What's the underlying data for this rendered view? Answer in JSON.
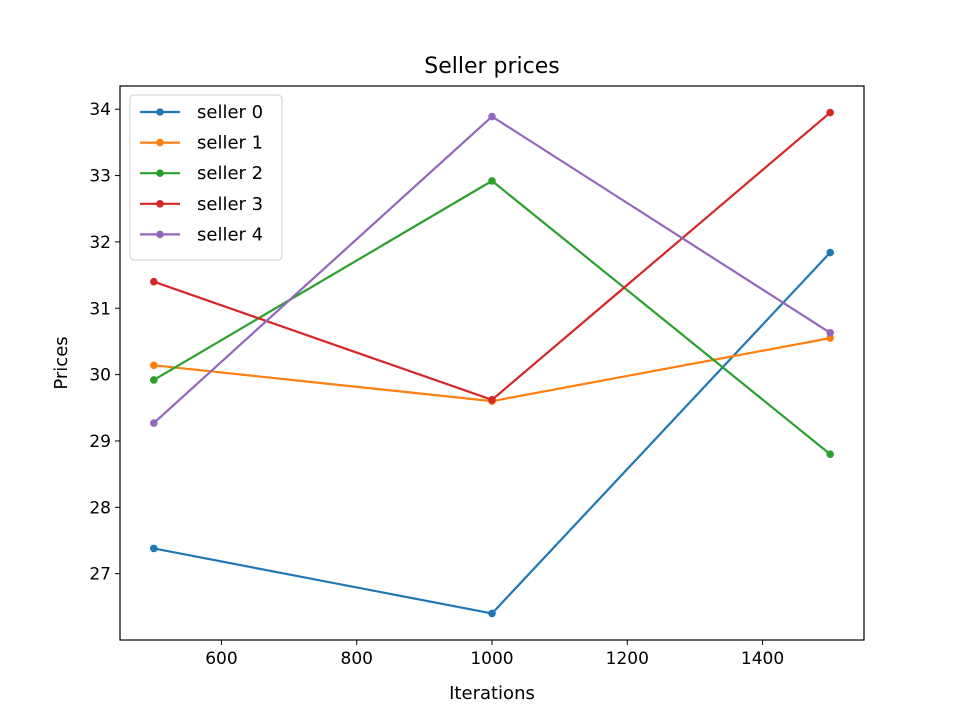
{
  "chart_data": {
    "type": "line",
    "title": "Seller prices",
    "xlabel": "Iterations",
    "ylabel": "Prices",
    "x": [
      500,
      1000,
      1500
    ],
    "xlim": [
      450,
      1550
    ],
    "ylim": [
      26.0,
      34.35
    ],
    "xticks": [
      600,
      800,
      1000,
      1200,
      1400
    ],
    "yticks": [
      27,
      28,
      29,
      30,
      31,
      32,
      33,
      34
    ],
    "grid": false,
    "legend_position": "top-left",
    "series": [
      {
        "name": "seller 0",
        "color": "#1f77b4",
        "values": [
          27.38,
          26.4,
          31.84
        ]
      },
      {
        "name": "seller 1",
        "color": "#ff7f0e",
        "values": [
          30.14,
          29.6,
          30.55
        ]
      },
      {
        "name": "seller 2",
        "color": "#2ca02c",
        "values": [
          29.92,
          32.92,
          28.8
        ]
      },
      {
        "name": "seller 3",
        "color": "#d62728",
        "values": [
          31.4,
          29.62,
          33.95
        ]
      },
      {
        "name": "seller 4",
        "color": "#9467bd",
        "values": [
          29.27,
          33.89,
          30.63
        ]
      }
    ]
  }
}
